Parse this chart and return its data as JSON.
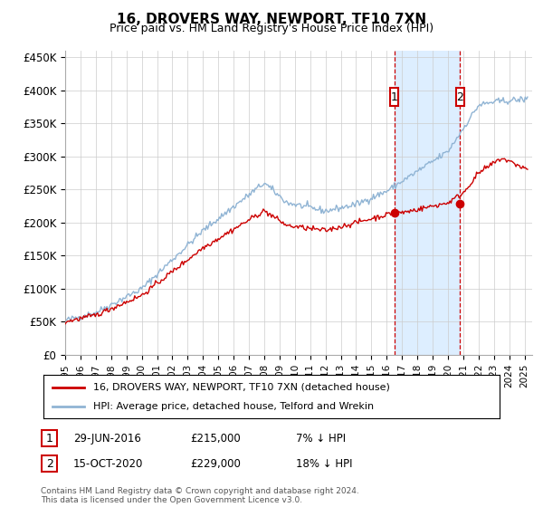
{
  "title": "16, DROVERS WAY, NEWPORT, TF10 7XN",
  "subtitle": "Price paid vs. HM Land Registry's House Price Index (HPI)",
  "ylabel_ticks": [
    "£0",
    "£50K",
    "£100K",
    "£150K",
    "£200K",
    "£250K",
    "£300K",
    "£350K",
    "£400K",
    "£450K"
  ],
  "ytick_values": [
    0,
    50000,
    100000,
    150000,
    200000,
    250000,
    300000,
    350000,
    400000,
    450000
  ],
  "ylim": [
    0,
    460000
  ],
  "xlim_start": 1995.0,
  "xlim_end": 2025.5,
  "hpi_color": "#90b4d4",
  "price_color": "#cc0000",
  "marker1_x": 2016.5,
  "marker1_y": 215000,
  "marker2_x": 2020.79,
  "marker2_y": 229000,
  "marker1_label": "1",
  "marker2_label": "2",
  "annotation1": "29-JUN-2016",
  "annotation1_price": "£215,000",
  "annotation1_hpi": "7% ↓ HPI",
  "annotation2": "15-OCT-2020",
  "annotation2_price": "£229,000",
  "annotation2_hpi": "18% ↓ HPI",
  "legend_line1": "16, DROVERS WAY, NEWPORT, TF10 7XN (detached house)",
  "legend_line2": "HPI: Average price, detached house, Telford and Wrekin",
  "footer": "Contains HM Land Registry data © Crown copyright and database right 2024.\nThis data is licensed under the Open Government Licence v3.0.",
  "background_color": "#ffffff",
  "grid_color": "#cccccc",
  "shaded_region_color": "#ddeeff"
}
